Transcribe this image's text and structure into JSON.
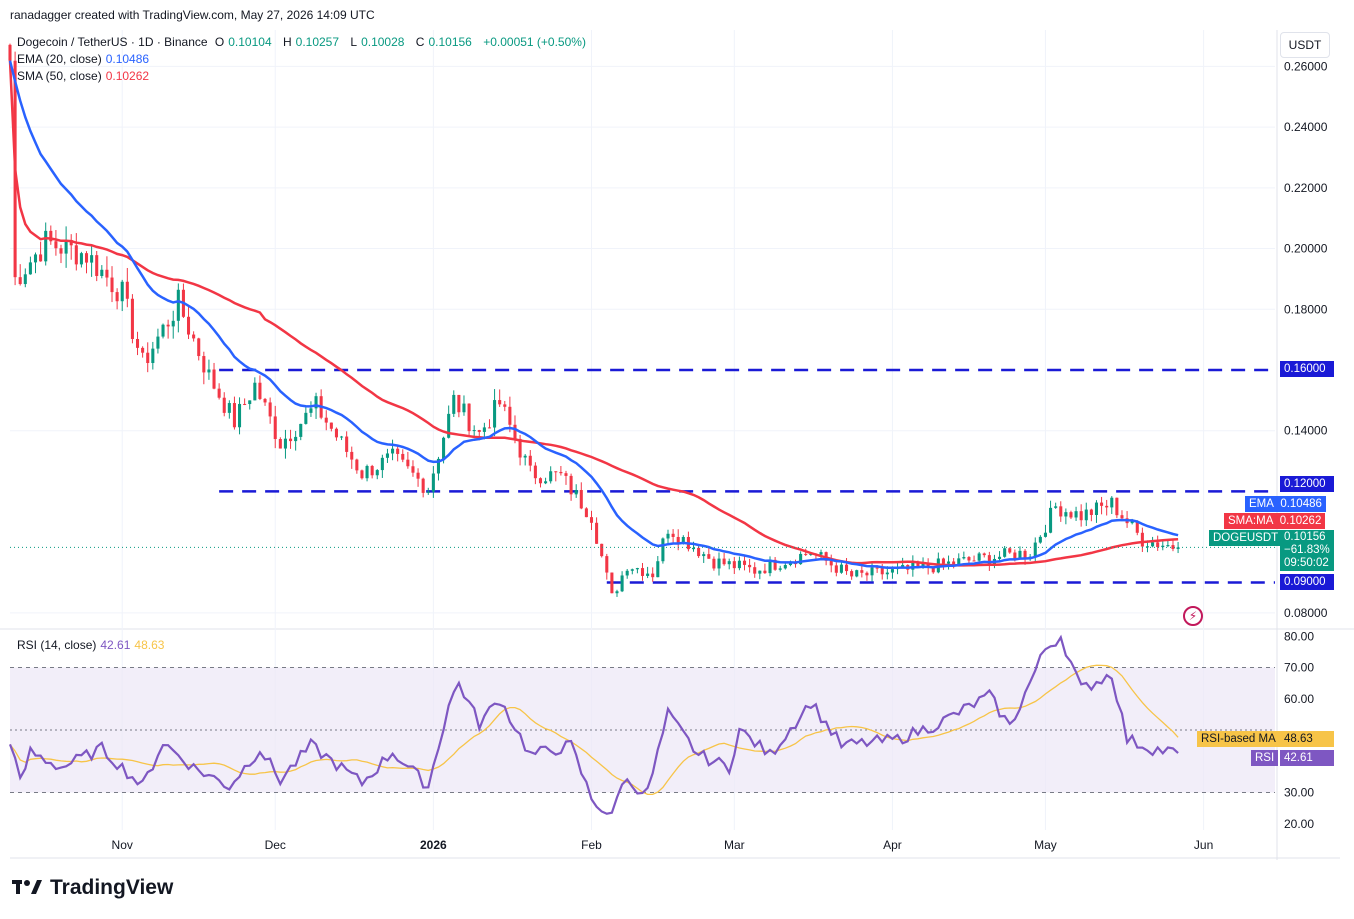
{
  "header": {
    "byline": "ranadagger created with TradingView.com, May 27, 2026 14:09 UTC",
    "symbol": "Dogecoin / TetherUS · 1D · Binance",
    "ohlc": [
      {
        "key": "O",
        "value": "0.10104"
      },
      {
        "key": "H",
        "value": "0.10257"
      },
      {
        "key": "L",
        "value": "0.10028"
      },
      {
        "key": "C",
        "value": "0.10156"
      }
    ],
    "change": "+0.00051 (+0.50%)",
    "ema_label": "EMA (20, close)",
    "ema_value": "0.10486",
    "sma_label": "SMA (50, close)",
    "sma_value": "0.10262",
    "rsi_label": "RSI (14, close)",
    "rsi_value": "42.61",
    "rsi_ma_value": "48.63"
  },
  "currency": "USDT",
  "watermark": "TradingView",
  "tags": {
    "ema": {
      "label": "EMA",
      "value": "0.10486"
    },
    "sma": {
      "label": "SMA:MA",
      "value": "0.10262"
    },
    "symbol": {
      "label": "DOGEUSDT",
      "price": "0.10156",
      "change": "−61.83%",
      "timer": "09:50:02"
    },
    "level_160": "0.16000",
    "level_090": "0.09000",
    "rsi_ma": {
      "label": "RSI-based MA",
      "value": "48.63"
    },
    "rsi": {
      "label": "RSI",
      "value": "42.61"
    }
  },
  "colors": {
    "up": "#089981",
    "down": "#f23645",
    "ema": "#2962ff",
    "sma": "#f23645",
    "level": "#1a1ad6",
    "rsi": "#7e57c2",
    "rsi_ma": "#f7c448",
    "rsi_band": "#ede7f6"
  },
  "chart_data": [
    {
      "type": "candlestick",
      "title": "Dogecoin / TetherUS · 1D · Binance",
      "ylim": [
        0.075,
        0.272
      ],
      "y_ticks": [
        "0.26000",
        "0.24000",
        "0.22000",
        "0.20000",
        "0.18000",
        "0.14000",
        "0.08000"
      ],
      "x_ticks": [
        "Nov",
        "Dec",
        "2026",
        "Feb",
        "Mar",
        "Apr",
        "May",
        "Jun"
      ],
      "horizontal_levels": [
        0.16,
        0.12,
        0.09
      ],
      "level_labels": [
        "0.16000",
        "0.12000",
        "0.09000"
      ],
      "keypoints": [
        {
          "date": "2025-10-10",
          "close": 0.262
        },
        {
          "date": "2025-10-11",
          "close": 0.19
        },
        {
          "date": "2025-10-17",
          "close": 0.202
        },
        {
          "date": "2025-10-25",
          "close": 0.198
        },
        {
          "date": "2025-11-01",
          "close": 0.185
        },
        {
          "date": "2025-11-05",
          "close": 0.162
        },
        {
          "date": "2025-11-12",
          "close": 0.182
        },
        {
          "date": "2025-11-18",
          "close": 0.158
        },
        {
          "date": "2025-11-23",
          "close": 0.143
        },
        {
          "date": "2025-11-27",
          "close": 0.155
        },
        {
          "date": "2025-12-02",
          "close": 0.136
        },
        {
          "date": "2025-12-09",
          "close": 0.148
        },
        {
          "date": "2025-12-18",
          "close": 0.126
        },
        {
          "date": "2025-12-24",
          "close": 0.131
        },
        {
          "date": "2025-12-31",
          "close": 0.121
        },
        {
          "date": "2026-01-05",
          "close": 0.15
        },
        {
          "date": "2026-01-10",
          "close": 0.139
        },
        {
          "date": "2026-01-14",
          "close": 0.149
        },
        {
          "date": "2026-01-20",
          "close": 0.126
        },
        {
          "date": "2026-01-26",
          "close": 0.125
        },
        {
          "date": "2026-02-01",
          "close": 0.112
        },
        {
          "date": "2026-02-05",
          "close": 0.085
        },
        {
          "date": "2026-02-08",
          "close": 0.096
        },
        {
          "date": "2026-02-13",
          "close": 0.093
        },
        {
          "date": "2026-02-16",
          "close": 0.108
        },
        {
          "date": "2026-02-25",
          "close": 0.097
        },
        {
          "date": "2026-03-05",
          "close": 0.094
        },
        {
          "date": "2026-03-16",
          "close": 0.1
        },
        {
          "date": "2026-03-24",
          "close": 0.092
        },
        {
          "date": "2026-04-04",
          "close": 0.094
        },
        {
          "date": "2026-04-15",
          "close": 0.097
        },
        {
          "date": "2026-04-28",
          "close": 0.1
        },
        {
          "date": "2026-05-03",
          "close": 0.115
        },
        {
          "date": "2026-05-08",
          "close": 0.112
        },
        {
          "date": "2026-05-14",
          "close": 0.116
        },
        {
          "date": "2026-05-20",
          "close": 0.104
        },
        {
          "date": "2026-05-27",
          "close": 0.10156
        }
      ],
      "series": [
        {
          "name": "EMA (20, close)",
          "last": 0.10486
        },
        {
          "name": "SMA (50, close)",
          "last": 0.10262
        }
      ]
    },
    {
      "type": "line",
      "title": "RSI (14, close)",
      "ylim": [
        18,
        82
      ],
      "y_ticks": [
        "80.00",
        "70.00",
        "60.00",
        "30.00",
        "20.00"
      ],
      "band": [
        30,
        70
      ],
      "series": [
        {
          "name": "RSI",
          "last": 42.61
        },
        {
          "name": "RSI-based MA",
          "last": 48.63
        }
      ],
      "rsi_keypoints": [
        {
          "date": "2025-10-10",
          "value": 47
        },
        {
          "date": "2025-10-12",
          "value": 33
        },
        {
          "date": "2025-10-14",
          "value": 43
        },
        {
          "date": "2025-10-20",
          "value": 38
        },
        {
          "date": "2025-10-28",
          "value": 44
        },
        {
          "date": "2025-11-05",
          "value": 32
        },
        {
          "date": "2025-11-09",
          "value": 46
        },
        {
          "date": "2025-11-15",
          "value": 38
        },
        {
          "date": "2025-11-22",
          "value": 32
        },
        {
          "date": "2025-11-28",
          "value": 44
        },
        {
          "date": "2025-12-02",
          "value": 34
        },
        {
          "date": "2025-12-08",
          "value": 45
        },
        {
          "date": "2025-12-18",
          "value": 33
        },
        {
          "date": "2025-12-24",
          "value": 43
        },
        {
          "date": "2025-12-31",
          "value": 32
        },
        {
          "date": "2026-01-04",
          "value": 58
        },
        {
          "date": "2026-01-06",
          "value": 65
        },
        {
          "date": "2026-01-10",
          "value": 52
        },
        {
          "date": "2026-01-14",
          "value": 60
        },
        {
          "date": "2026-01-20",
          "value": 42
        },
        {
          "date": "2026-01-28",
          "value": 45
        },
        {
          "date": "2026-02-01",
          "value": 28
        },
        {
          "date": "2026-02-05",
          "value": 22
        },
        {
          "date": "2026-02-07",
          "value": 34
        },
        {
          "date": "2026-02-12",
          "value": 30
        },
        {
          "date": "2026-02-16",
          "value": 55
        },
        {
          "date": "2026-02-22",
          "value": 42
        },
        {
          "date": "2026-02-28",
          "value": 38
        },
        {
          "date": "2026-03-02",
          "value": 50
        },
        {
          "date": "2026-03-08",
          "value": 42
        },
        {
          "date": "2026-03-16",
          "value": 59
        },
        {
          "date": "2026-03-22",
          "value": 45
        },
        {
          "date": "2026-04-02",
          "value": 47
        },
        {
          "date": "2026-04-10",
          "value": 52
        },
        {
          "date": "2026-04-20",
          "value": 61
        },
        {
          "date": "2026-04-24",
          "value": 51
        },
        {
          "date": "2026-05-01",
          "value": 76
        },
        {
          "date": "2026-05-04",
          "value": 80
        },
        {
          "date": "2026-05-08",
          "value": 63
        },
        {
          "date": "2026-05-14",
          "value": 68
        },
        {
          "date": "2026-05-17",
          "value": 47
        },
        {
          "date": "2026-05-22",
          "value": 44
        },
        {
          "date": "2026-05-27",
          "value": 42.61
        }
      ]
    }
  ]
}
